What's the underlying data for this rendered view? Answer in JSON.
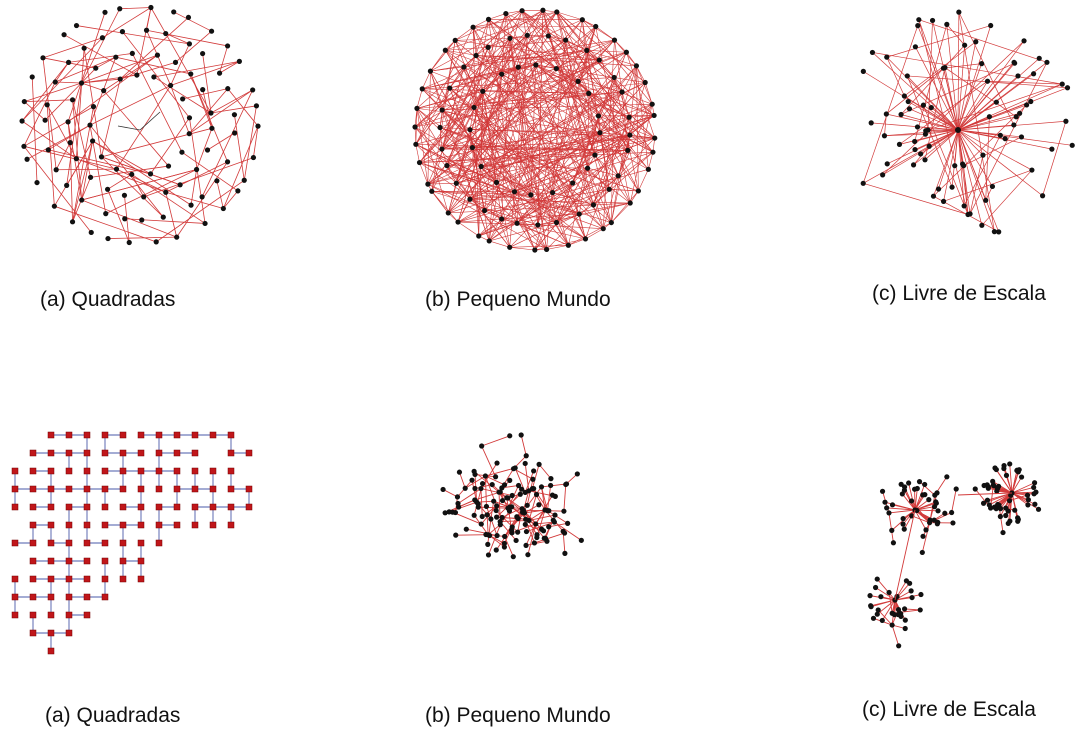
{
  "top": {
    "captions": [
      "(a) Quadradas",
      "(b) Pequeno Mundo",
      "(c) Livre de Escala"
    ]
  },
  "bottom": {
    "captions": [
      "(a) Quadradas",
      "(b) Pequeno Mundo",
      "(c) Livre de Escala"
    ]
  }
}
